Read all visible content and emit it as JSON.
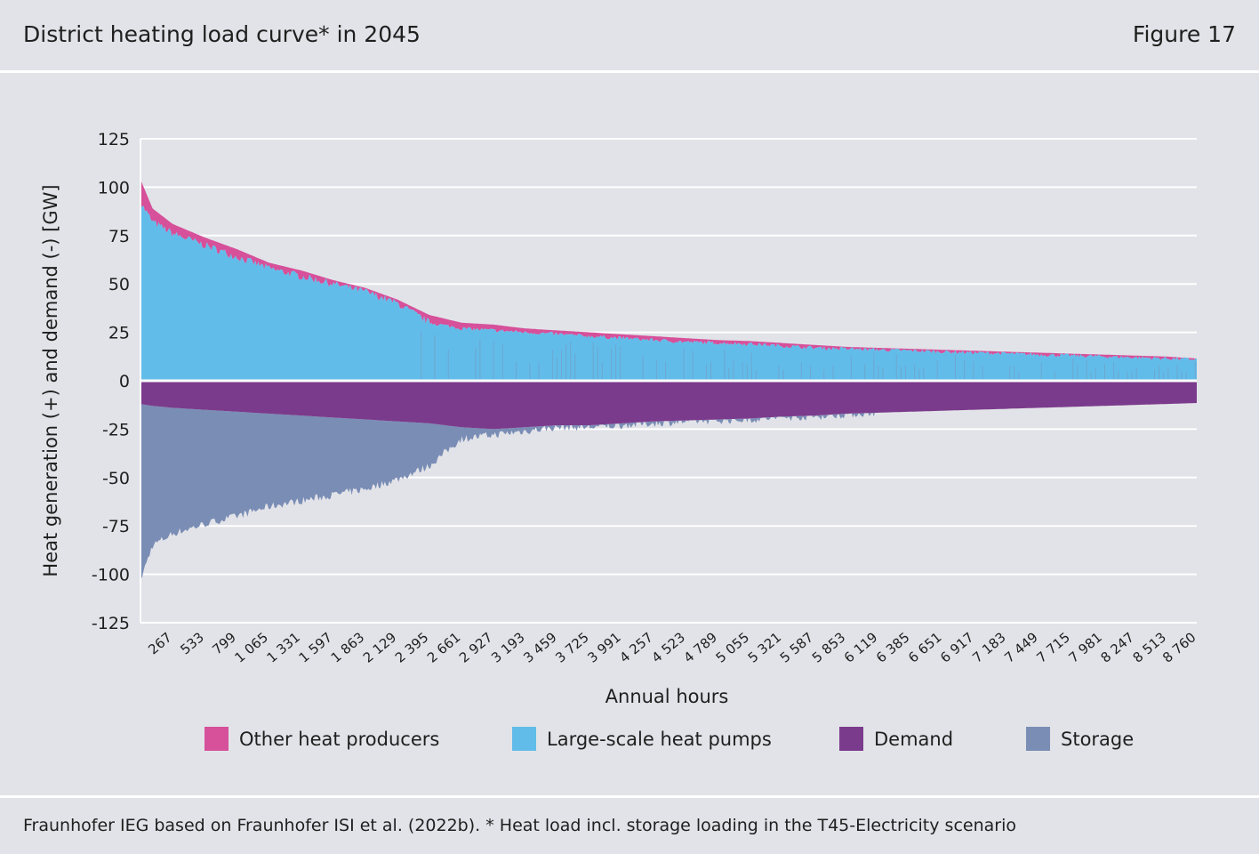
{
  "header": {
    "title": "District heating load curve* in 2045",
    "figure": "Figure 17"
  },
  "footer": {
    "source": "Fraunhofer IEG based on Fraunhofer ISI et al. (2022b). * Heat load incl. storage loading in the T45-Electricity scenario"
  },
  "colors": {
    "other_heat_producers": "#d6509a",
    "large_scale_heat_pumps": "#62bce9",
    "demand": "#7b3b8c",
    "storage": "#7a8db5",
    "grid": "#ffffff",
    "background": "#e2e3e8"
  },
  "chart_data": {
    "type": "area",
    "title": "District heating load curve* in 2045",
    "xlabel": "Annual hours",
    "ylabel": "Heat generation (+) and demand (-) [GW]",
    "xlim": [
      0,
      8760
    ],
    "ylim": [
      -125,
      125
    ],
    "yticks": [
      125,
      100,
      75,
      50,
      25,
      0,
      -25,
      -50,
      -75,
      -100,
      -125
    ],
    "ytick_labels": [
      "125",
      "100",
      "75",
      "50",
      "25",
      "0",
      "-25",
      "-50",
      "-75",
      "-100",
      "-125"
    ],
    "xticks": [
      267,
      533,
      799,
      1065,
      1331,
      1597,
      1863,
      2129,
      2395,
      2661,
      2927,
      3193,
      3459,
      3725,
      3991,
      4257,
      4523,
      4789,
      5055,
      5321,
      5587,
      5853,
      6119,
      6385,
      6651,
      6917,
      7183,
      7449,
      7715,
      7981,
      8247,
      8513,
      8760
    ],
    "xtick_labels": [
      "267",
      "533",
      "799",
      "1 065",
      "1 331",
      "1 597",
      "1 863",
      "2 129",
      "2 395",
      "2 661",
      "2 927",
      "3 193",
      "3 459",
      "3 725",
      "3 991",
      "4 257",
      "4 523",
      "4 789",
      "5 055",
      "5 321",
      "5 587",
      "5 853",
      "6 119",
      "6 385",
      "6 651",
      "6 917",
      "7 183",
      "7 449",
      "7 715",
      "7 981",
      "8 247",
      "8 513",
      "8 760"
    ],
    "legend": [
      "Other heat producers",
      "Large-scale heat pumps",
      "Demand",
      "Storage"
    ],
    "legend_position": "bottom",
    "x": [
      0,
      100,
      267,
      533,
      799,
      1065,
      1331,
      1597,
      1863,
      2129,
      2395,
      2661,
      2927,
      3193,
      3459,
      3725,
      3991,
      4257,
      4523,
      4789,
      5055,
      5321,
      5587,
      5853,
      6119,
      6385,
      6651,
      6917,
      7183,
      7449,
      7715,
      7981,
      8247,
      8513,
      8760
    ],
    "series": [
      {
        "name": "Large-scale heat pumps",
        "values": [
          92,
          82,
          76,
          70,
          64,
          58,
          54,
          50,
          46,
          40,
          30,
          27,
          26,
          25,
          24,
          23,
          22,
          21,
          20,
          19.5,
          19,
          18,
          17,
          16.5,
          16,
          15.5,
          15,
          14.5,
          14,
          13.5,
          13,
          12.5,
          12,
          11.5,
          11
        ]
      },
      {
        "name": "Other heat producers",
        "values": [
          12,
          7,
          5,
          4,
          4,
          3,
          3,
          2,
          2,
          2,
          4,
          3,
          3,
          2,
          2,
          2,
          2,
          2,
          2,
          1.5,
          1.5,
          1.5,
          1.5,
          1,
          1,
          1,
          1,
          1,
          1,
          1,
          1,
          1,
          1,
          1,
          0.5
        ]
      },
      {
        "name": "Demand",
        "values": [
          -12,
          -13,
          -14,
          -15,
          -16,
          -17,
          -18,
          -19,
          -20,
          -21,
          -22,
          -24,
          -25,
          -24,
          -23,
          -23,
          -22,
          -21,
          -20.5,
          -20,
          -19.5,
          -18.5,
          -18,
          -17,
          -16.5,
          -16,
          -15.5,
          -15,
          -14.5,
          -14,
          -13.5,
          -13,
          -12.5,
          -12,
          -11.5
        ]
      },
      {
        "name": "Storage",
        "values": [
          -91,
          -72,
          -65,
          -59,
          -54,
          -48,
          -44,
          -40,
          -36,
          -30,
          -22,
          -6,
          -3,
          -2,
          -1,
          -1,
          -1,
          -1,
          -0.5,
          -0.5,
          -0.5,
          -0.5,
          -0.5,
          -0.5,
          0,
          0,
          0,
          0,
          0,
          0,
          0,
          0,
          0,
          0,
          0
        ]
      }
    ]
  }
}
